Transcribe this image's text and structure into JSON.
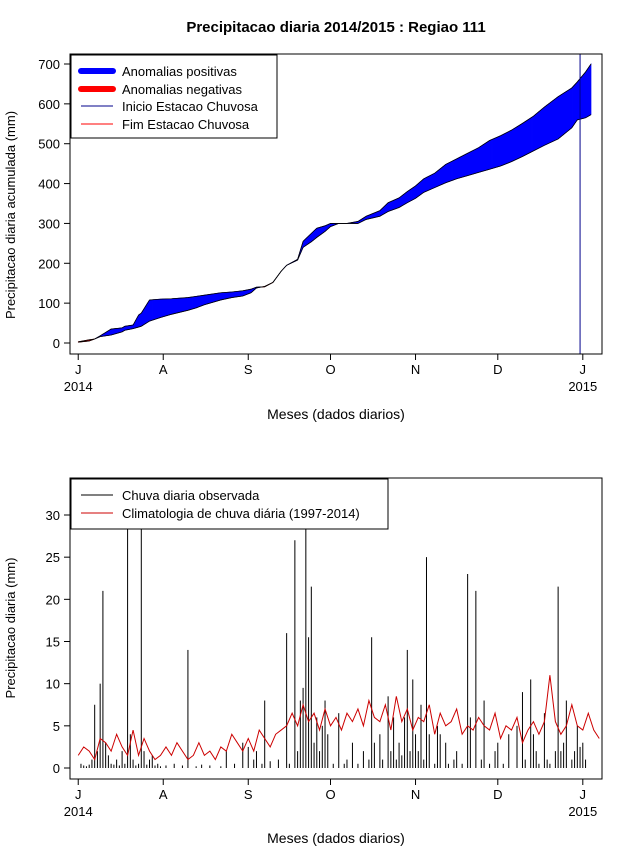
{
  "title": "Precipitacao diaria 2014/2015 : Regiao 111",
  "chart_data": [
    {
      "type": "area",
      "title": "Precipitacao diaria 2014/2015 : Regiao 111",
      "xlabel": "Meses (dados diarios)",
      "ylabel": "Precipitacao diaria acumulada (mm)",
      "ylim": [
        0,
        700
      ],
      "yticks": [
        0,
        100,
        200,
        300,
        400,
        500,
        600,
        700
      ],
      "xlim_days": [
        -3,
        191
      ],
      "month_ticks": [
        {
          "day": 0,
          "label": "J",
          "year": "2014"
        },
        {
          "day": 31,
          "label": "A",
          "year": ""
        },
        {
          "day": 62,
          "label": "S",
          "year": ""
        },
        {
          "day": 92,
          "label": "O",
          "year": ""
        },
        {
          "day": 123,
          "label": "N",
          "year": ""
        },
        {
          "day": 153,
          "label": "D",
          "year": ""
        },
        {
          "day": 184,
          "label": "J",
          "year": "2015"
        }
      ],
      "legend": [
        {
          "label": "Anomalias positivas",
          "color": "#0000ff",
          "kind": "thick"
        },
        {
          "label": "Anomalias negativas",
          "color": "#ff0000",
          "kind": "thick"
        },
        {
          "label": "Inicio Estacao Chuvosa",
          "color": "#00008b",
          "kind": "line"
        },
        {
          "label": "Fim Estacao Chuvosa",
          "color": "#ff0000",
          "kind": "line"
        }
      ],
      "season_start_day": 183,
      "colors": {
        "positive": "#0000ff",
        "negative": "#ff0000",
        "season_start": "#00008b"
      },
      "days": [
        0,
        4,
        6,
        8,
        12,
        16,
        17,
        20,
        22,
        23,
        26,
        30,
        34,
        40,
        43,
        46,
        52,
        56,
        60,
        63,
        65,
        68,
        71,
        74,
        76,
        80,
        82,
        85,
        87,
        90,
        92,
        95,
        98,
        102,
        105,
        110,
        113,
        117,
        120,
        123,
        126,
        130,
        134,
        138,
        142,
        146,
        150,
        154,
        158,
        162,
        166,
        170,
        175,
        180,
        182,
        185,
        187
      ],
      "observed": [
        2,
        5,
        10,
        18,
        35,
        38,
        42,
        45,
        70,
        75,
        108,
        110,
        111,
        114,
        117,
        120,
        126,
        128,
        131,
        135,
        140,
        141,
        152,
        180,
        195,
        210,
        255,
        275,
        288,
        294,
        300,
        300,
        300,
        305,
        318,
        332,
        352,
        364,
        380,
        394,
        412,
        426,
        448,
        462,
        476,
        490,
        508,
        520,
        534,
        551,
        569,
        592,
        618,
        640,
        655,
        680,
        700
      ],
      "climatology": [
        3,
        8,
        10,
        16,
        20,
        28,
        32,
        36,
        40,
        42,
        55,
        64,
        72,
        82,
        88,
        96,
        108,
        114,
        118,
        126,
        138,
        142,
        152,
        180,
        195,
        208,
        240,
        254,
        265,
        280,
        292,
        300,
        300,
        300,
        310,
        318,
        330,
        340,
        352,
        363,
        378,
        390,
        402,
        412,
        420,
        428,
        436,
        444,
        455,
        468,
        482,
        496,
        512,
        540,
        560,
        565,
        573
      ]
    },
    {
      "type": "bar",
      "xlabel": "Meses (dados diarios)",
      "ylabel": "Precipitacao diaria (mm)",
      "ylim": [
        0,
        33
      ],
      "yticks": [
        0,
        5,
        10,
        15,
        20,
        25,
        30
      ],
      "xlim_days": [
        -3,
        191
      ],
      "month_ticks": [
        {
          "day": 0,
          "label": "J",
          "year": "2014"
        },
        {
          "day": 31,
          "label": "A",
          "year": ""
        },
        {
          "day": 62,
          "label": "S",
          "year": ""
        },
        {
          "day": 92,
          "label": "O",
          "year": ""
        },
        {
          "day": 123,
          "label": "N",
          "year": ""
        },
        {
          "day": 153,
          "label": "D",
          "year": ""
        },
        {
          "day": 184,
          "label": "J",
          "year": "2015"
        }
      ],
      "legend": [
        {
          "label": "Chuva diaria observada",
          "color": "#000000",
          "kind": "line"
        },
        {
          "label": "Climatologia de chuva diária (1997-2014)",
          "color": "#cc0000",
          "kind": "line"
        }
      ],
      "series": [
        {
          "name": "Chuva diaria observada",
          "color": "#000000",
          "days": [
            1,
            2,
            3,
            4,
            5,
            6,
            7,
            8,
            9,
            10,
            11,
            12,
            13,
            14,
            15,
            16,
            17,
            18,
            19,
            20,
            21,
            22,
            23,
            24,
            25,
            26,
            27,
            28,
            29,
            30,
            32,
            35,
            38,
            40,
            43,
            45,
            48,
            52,
            54,
            57,
            60,
            62,
            64,
            65,
            67,
            68,
            70,
            73,
            76,
            77,
            79,
            80,
            81,
            82,
            83,
            84,
            85,
            86,
            87,
            88,
            89,
            90,
            91,
            93,
            95,
            97,
            98,
            100,
            102,
            104,
            106,
            107,
            108,
            110,
            111,
            113,
            114,
            115,
            116,
            117,
            118,
            119,
            120,
            121,
            122,
            123,
            124,
            125,
            126,
            127,
            128,
            130,
            131,
            132,
            134,
            135,
            137,
            138,
            140,
            142,
            143,
            145,
            147,
            148,
            150,
            152,
            153,
            155,
            157,
            160,
            162,
            163,
            165,
            166,
            167,
            168,
            170,
            171,
            172,
            174,
            175,
            176,
            177,
            178,
            180,
            181,
            182,
            183,
            184,
            185
          ],
          "values": [
            0.5,
            0.3,
            0.2,
            0.4,
            1.0,
            7.5,
            2.0,
            10.0,
            21.0,
            3.0,
            1.5,
            0.5,
            0.4,
            1.0,
            0.3,
            2.0,
            0.5,
            29.0,
            4.0,
            1.0,
            0.3,
            0.5,
            29.0,
            2.0,
            0.4,
            1.0,
            1.5,
            0.3,
            0.5,
            0.2,
            0.3,
            0.5,
            0.3,
            14.0,
            0.2,
            0.4,
            0.3,
            0.2,
            2.0,
            0.5,
            3.0,
            2.5,
            1.0,
            2.0,
            0.5,
            8.0,
            0.8,
            1.0,
            16.0,
            0.5,
            27.0,
            2.0,
            8.0,
            9.5,
            30.0,
            15.5,
            21.5,
            3.0,
            6.0,
            2.0,
            5.0,
            8.0,
            4.0,
            0.5,
            6.5,
            0.5,
            1.0,
            3.0,
            0.5,
            2.0,
            1.0,
            15.5,
            3.0,
            4.0,
            1.0,
            8.5,
            2.0,
            6.0,
            1.0,
            3.0,
            1.5,
            6.0,
            14.0,
            2.0,
            10.5,
            4.0,
            2.0,
            7.5,
            1.0,
            25.0,
            4.0,
            0.5,
            5.0,
            4.0,
            3.0,
            0.5,
            1.0,
            2.0,
            0.5,
            23.0,
            6.0,
            21.0,
            1.0,
            8.0,
            0.5,
            2.0,
            3.0,
            0.5,
            4.0,
            5.0,
            9.0,
            1.0,
            10.5,
            4.0,
            2.0,
            0.5,
            6.5,
            1.0,
            0.5,
            2.0,
            21.5,
            2.0,
            3.0,
            8.0,
            1.0,
            2.0,
            5.0,
            2.5,
            3.0,
            1.0
          ]
        },
        {
          "name": "Climatologia de chuva diária (1997-2014)",
          "color": "#cc0000",
          "days": [
            0,
            2,
            4,
            6,
            8,
            10,
            12,
            14,
            16,
            18,
            20,
            22,
            24,
            26,
            28,
            30,
            32,
            34,
            36,
            38,
            40,
            42,
            44,
            46,
            48,
            50,
            52,
            54,
            56,
            58,
            60,
            62,
            64,
            66,
            68,
            70,
            72,
            74,
            76,
            78,
            80,
            82,
            84,
            86,
            88,
            90,
            92,
            94,
            96,
            98,
            100,
            102,
            104,
            106,
            108,
            110,
            112,
            114,
            116,
            118,
            120,
            122,
            124,
            126,
            128,
            130,
            132,
            134,
            136,
            138,
            140,
            142,
            144,
            146,
            148,
            150,
            152,
            154,
            156,
            158,
            160,
            162,
            164,
            166,
            168,
            170,
            172,
            174,
            176,
            178,
            180,
            182,
            184,
            186,
            188,
            190
          ],
          "values": [
            1.5,
            2.5,
            2.0,
            1.0,
            3.5,
            3.0,
            2.0,
            4.0,
            2.5,
            1.5,
            4.5,
            1.5,
            3.5,
            2.0,
            1.0,
            1.5,
            2.5,
            1.5,
            3.0,
            2.0,
            1.0,
            1.5,
            3.0,
            1.5,
            2.0,
            1.0,
            2.5,
            2.0,
            4.0,
            3.0,
            2.0,
            3.5,
            2.0,
            4.5,
            3.5,
            2.5,
            4.0,
            4.5,
            5.0,
            6.5,
            5.0,
            7.5,
            5.5,
            6.5,
            4.5,
            7.0,
            5.0,
            6.0,
            4.5,
            6.5,
            5.5,
            7.0,
            5.0,
            8.0,
            6.0,
            5.5,
            7.5,
            4.5,
            8.5,
            5.5,
            7.0,
            4.5,
            6.0,
            5.5,
            7.5,
            4.0,
            6.5,
            5.0,
            5.5,
            7.0,
            4.0,
            5.0,
            4.5,
            6.0,
            5.0,
            4.5,
            6.5,
            3.5,
            5.0,
            4.5,
            6.0,
            3.0,
            4.5,
            5.5,
            4.0,
            5.5,
            11.0,
            5.5,
            4.0,
            5.0,
            7.5,
            5.0,
            4.5,
            6.5,
            4.5,
            3.5
          ]
        }
      ]
    }
  ]
}
